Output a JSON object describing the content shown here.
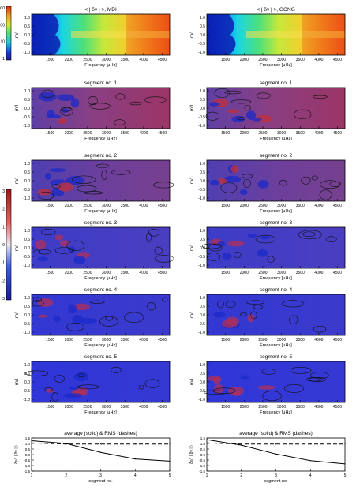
{
  "figure": {
    "columns": [
      "MDI",
      "GONG"
    ],
    "top_titles": [
      "< | δν | >, MDI",
      "< | δν | >, GONG"
    ],
    "top_colorbar": {
      "ticks": [
        "1000",
        "100",
        "10",
        "1"
      ],
      "scale": "log",
      "palette": "rainbow"
    },
    "segment_colorbar": {
      "ticks": [
        "3",
        "2",
        "1",
        "0",
        "-1",
        "-2",
        "-3"
      ],
      "palette": "blue-white-red"
    },
    "panel_xlabel": "Frequency [μHz]",
    "panel_ylabel": "m/l",
    "panel_yticks": [
      "1.0",
      "0.5",
      "0.0",
      "-0.5",
      "-1.0"
    ],
    "panel_xticks": [
      "1500",
      "2000",
      "2500",
      "3000",
      "3500",
      "4000",
      "4500"
    ],
    "segment_titles": [
      "segment no. 1",
      "segment no. 2",
      "segment no. 3",
      "segment no. 4",
      "segment no. 5"
    ],
    "bottom_titles": [
      "average (solid) & RMS (dashes)",
      "average (solid) & RMS (dashes)"
    ],
    "bottom_xlabel": "segment no.",
    "bottom_ylabel": "δν/⟨ | δν | ⟩",
    "bottom_xticks": [
      "1",
      "2",
      "3",
      "4",
      "5"
    ],
    "bottom_yticks": [
      "1.5",
      "1.0",
      "0.5",
      "0.0",
      "-0.5",
      "-1.0",
      "-1.5"
    ]
  },
  "chart_data": [
    {
      "type": "heatmap",
      "title": "< | δν | >, MDI",
      "xlabel": "Frequency [μHz]",
      "ylabel": "m/l",
      "xlim": [
        1000,
        4700
      ],
      "ylim": [
        -1.0,
        1.0
      ],
      "colorbar": "log",
      "colorbar_ticks": [
        1,
        10,
        100,
        1000
      ]
    },
    {
      "type": "heatmap",
      "title": "< | δν | >, GONG",
      "xlabel": "Frequency [μHz]",
      "ylabel": "m/l",
      "xlim": [
        1000,
        4700
      ],
      "ylim": [
        -1.0,
        1.0
      ],
      "colorbar": "log",
      "colorbar_ticks": [
        1,
        10,
        100,
        1000
      ]
    },
    {
      "type": "line",
      "title": "average (solid) & RMS (dashes)",
      "xlabel": "segment no.",
      "ylabel": "δν/⟨ | δν | ⟩",
      "xlim": [
        1,
        5
      ],
      "ylim": [
        -1.5,
        1.5
      ],
      "x": [
        1,
        2,
        3,
        4,
        5
      ],
      "series": [
        {
          "name": "average",
          "style": "solid",
          "values": [
            1.25,
            1.0,
            0.2,
            -0.4,
            -0.6
          ]
        },
        {
          "name": "RMS",
          "style": "dashed",
          "values": [
            1.05,
            0.95,
            0.95,
            0.95,
            0.95
          ]
        }
      ]
    },
    {
      "type": "line",
      "title": "average (solid) & RMS (dashes)",
      "xlabel": "segment no.",
      "ylabel": "δν/⟨ | δν | ⟩",
      "xlim": [
        1,
        5
      ],
      "ylim": [
        -1.5,
        1.5
      ],
      "x": [
        1,
        2,
        3,
        4,
        5
      ],
      "series": [
        {
          "name": "average",
          "style": "solid",
          "values": [
            1.35,
            0.85,
            0.05,
            -0.55,
            -0.85
          ]
        },
        {
          "name": "RMS",
          "style": "dashed",
          "values": [
            1.05,
            0.95,
            0.95,
            0.95,
            0.95
          ]
        }
      ]
    }
  ]
}
